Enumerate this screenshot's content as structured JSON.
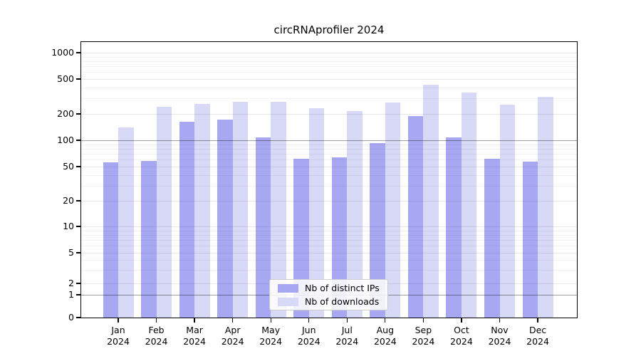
{
  "title": "circRNAprofiler 2024",
  "chart_data": {
    "type": "bar",
    "title": "circRNAprofiler 2024",
    "categories": [
      "Jan",
      "Feb",
      "Mar",
      "Apr",
      "May",
      "Jun",
      "Jul",
      "Aug",
      "Sep",
      "Oct",
      "Nov",
      "Dec"
    ],
    "category_year": "2024",
    "series": [
      {
        "name": "Nb of distinct IPs",
        "color": "#a8a8f2",
        "values": [
          56,
          58,
          163,
          171,
          108,
          61,
          64,
          93,
          190,
          108,
          61,
          57
        ]
      },
      {
        "name": "Nb of downloads",
        "color": "#d8d8f7",
        "values": [
          140,
          240,
          258,
          276,
          276,
          232,
          215,
          272,
          428,
          350,
          254,
          312
        ]
      }
    ],
    "yscale": "symlog",
    "yticks": [
      0,
      1,
      2,
      5,
      10,
      20,
      50,
      100,
      200,
      500,
      1000
    ],
    "ylim": [
      0,
      1100
    ],
    "xlabel": "",
    "ylabel": "",
    "grid": "on",
    "legend_position": "lower center"
  }
}
